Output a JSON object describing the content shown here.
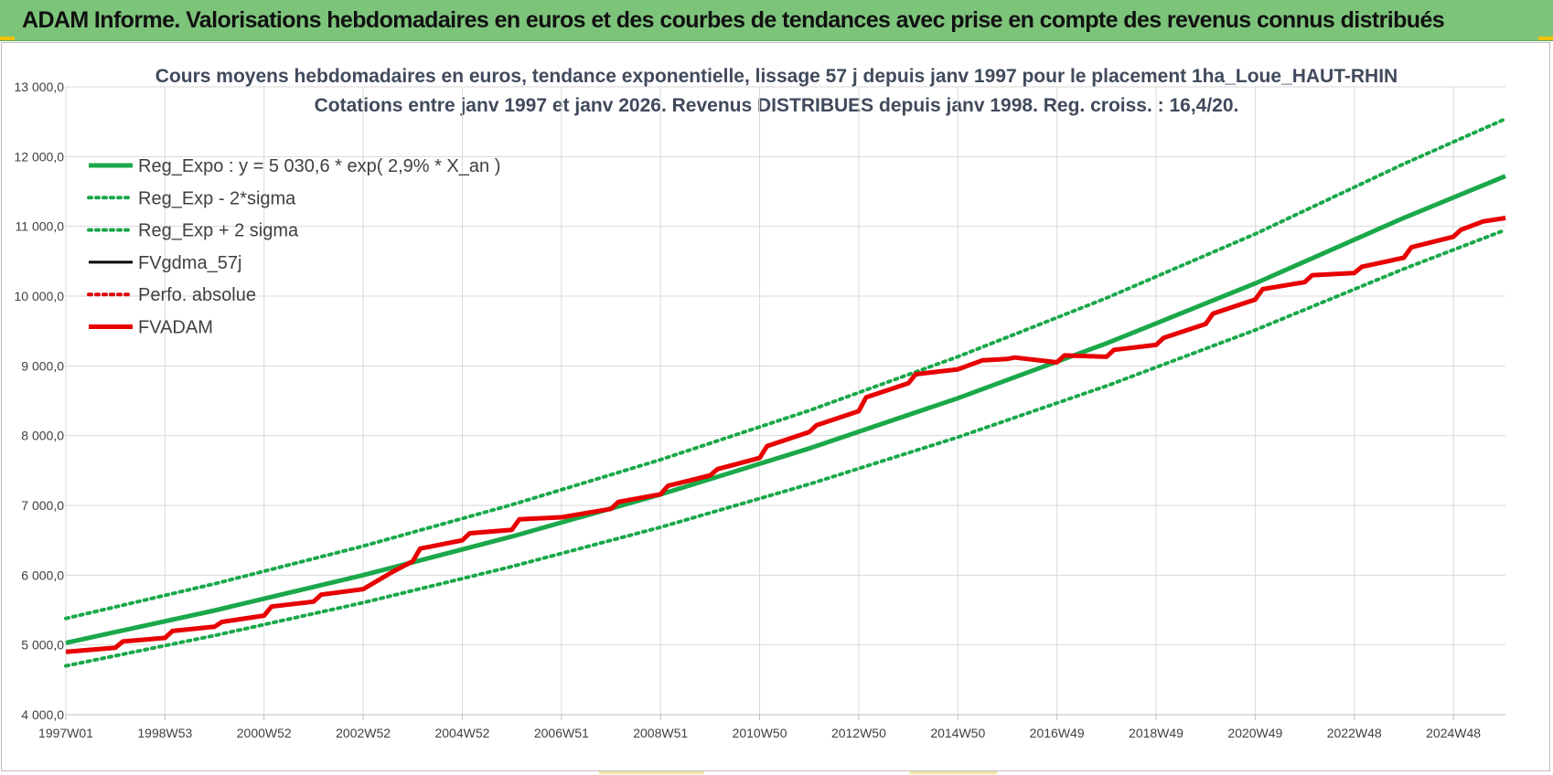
{
  "banner": {
    "title": "ADAM Informe. Valorisations hebdomadaires en euros et des courbes de tendances avec prise en compte des revenus connus distribués",
    "background": "#7dc47b"
  },
  "chart_data": {
    "type": "line",
    "title_line1": "Cours moyens hebdomadaires en euros, tendance exponentielle, lissage 57 j depuis janv 1997  pour le placement 1ha_Loue_HAUT-RHIN",
    "title_line2": "Cotations entre janv 1997 et janv 2026. Revenus DISTRIBUES depuis janv 1998.  Reg. croiss. : 16,4/20.",
    "ylim": [
      4000,
      13000
    ],
    "yticks": [
      4000,
      5000,
      6000,
      7000,
      8000,
      9000,
      10000,
      11000,
      12000,
      13000
    ],
    "ytick_labels": [
      "4 000,0",
      "5 000,0",
      "6 000,0",
      "7 000,0",
      "8 000,0",
      "9 000,0",
      "10 000,0",
      "11 000,0",
      "12 000,0",
      "13 000,0"
    ],
    "xlim": [
      1997.0,
      2026.05
    ],
    "xticks": [
      1997.0,
      1999.0,
      2001.0,
      2003.0,
      2005.0,
      2007.0,
      2009.0,
      2011.0,
      2013.0,
      2015.0,
      2017.0,
      2019.0,
      2021.0,
      2023.0,
      2025.0
    ],
    "xtick_labels": [
      "1997W01",
      "1998W53",
      "2000W52",
      "2002W52",
      "2004W52",
      "2006W51",
      "2008W51",
      "2010W50",
      "2012W50",
      "2014W50",
      "2016W49",
      "2018W49",
      "2020W49",
      "2022W48",
      "2024W48"
    ],
    "grid": true,
    "legend_position": "top-left",
    "series": [
      {
        "name": "Reg_Expo : y = 5 030,6 * exp( 2,9% *  X_an )",
        "style": "solid",
        "color": "#1aa84a",
        "width": 5,
        "x": [
          1997.0,
          2000.0,
          2003.0,
          2006.0,
          2009.0,
          2012.0,
          2015.0,
          2018.0,
          2021.0,
          2024.0,
          2026.05
        ],
        "values": [
          5030,
          5494,
          6000,
          6553,
          7157,
          7816,
          8537,
          9323,
          10182,
          11121,
          11720
        ]
      },
      {
        "name": "Reg_Exp - 2*sigma",
        "style": "dotted",
        "color": "#1aa84a",
        "width": 4,
        "x": [
          1997.0,
          2000.0,
          2003.0,
          2006.0,
          2009.0,
          2012.0,
          2015.0,
          2018.0,
          2021.0,
          2024.0,
          2026.05
        ],
        "values": [
          4700,
          5134,
          5606,
          6123,
          6687,
          7304,
          7977,
          8712,
          9514,
          10391,
          10950
        ]
      },
      {
        "name": "Reg_Exp + 2 sigma",
        "style": "dotted",
        "color": "#1aa84a",
        "width": 4,
        "x": [
          1997.0,
          2000.0,
          2003.0,
          2006.0,
          2009.0,
          2012.0,
          2015.0,
          2018.0,
          2021.0,
          2024.0,
          2026.05
        ],
        "values": [
          5380,
          5876,
          6417,
          7009,
          7655,
          8360,
          9131,
          9972,
          10891,
          11895,
          12540
        ]
      },
      {
        "name": "FVgdma_57j",
        "style": "solid",
        "color": "#000000",
        "width": 3,
        "x": [
          1997.0,
          1998.0,
          1998.15,
          1999.0,
          1999.15,
          2000.0,
          2000.15,
          2001.0,
          2001.15,
          2002.0,
          2002.15,
          2003.0,
          2003.6,
          2004.0,
          2004.15,
          2005.0,
          2005.15,
          2006.0,
          2006.15,
          2007.0,
          2008.0,
          2008.15,
          2009.0,
          2009.15,
          2010.0,
          2010.15,
          2011.0,
          2011.15,
          2012.0,
          2012.15,
          2013.0,
          2013.15,
          2014.0,
          2014.15,
          2015.0,
          2015.5,
          2016.0,
          2016.15,
          2017.0,
          2017.15,
          2018.0,
          2018.15,
          2019.0,
          2019.15,
          2020.0,
          2020.15,
          2021.0,
          2021.15,
          2022.0,
          2022.15,
          2023.0,
          2023.15,
          2024.0,
          2024.15,
          2025.0,
          2025.15,
          2025.6,
          2026.05
        ],
        "values": [
          4900,
          4960,
          5050,
          5100,
          5200,
          5260,
          5330,
          5420,
          5550,
          5620,
          5720,
          5800,
          6050,
          6200,
          6380,
          6500,
          6600,
          6650,
          6800,
          6830,
          6950,
          7050,
          7160,
          7280,
          7430,
          7520,
          7680,
          7850,
          8050,
          8150,
          8350,
          8550,
          8750,
          8880,
          8950,
          9080,
          9100,
          9120,
          9050,
          9150,
          9130,
          9230,
          9300,
          9400,
          9600,
          9750,
          9950,
          10100,
          10200,
          10300,
          10330,
          10420,
          10550,
          10700,
          10850,
          10950,
          11070,
          11120
        ]
      },
      {
        "name": "Perfo. absolue",
        "style": "dotted",
        "color": "#e00000",
        "width": 3,
        "x": [],
        "values": []
      },
      {
        "name": "FVADAM",
        "style": "solid",
        "color": "#e80000",
        "width": 5,
        "x": [
          1997.0,
          1998.0,
          1998.15,
          1999.0,
          1999.15,
          2000.0,
          2000.15,
          2001.0,
          2001.15,
          2002.0,
          2002.15,
          2003.0,
          2003.6,
          2004.0,
          2004.15,
          2005.0,
          2005.15,
          2006.0,
          2006.15,
          2007.0,
          2008.0,
          2008.15,
          2009.0,
          2009.15,
          2010.0,
          2010.15,
          2011.0,
          2011.15,
          2012.0,
          2012.15,
          2013.0,
          2013.15,
          2014.0,
          2014.15,
          2015.0,
          2015.5,
          2016.0,
          2016.15,
          2017.0,
          2017.15,
          2018.0,
          2018.15,
          2019.0,
          2019.15,
          2020.0,
          2020.15,
          2021.0,
          2021.15,
          2022.0,
          2022.15,
          2023.0,
          2023.15,
          2024.0,
          2024.15,
          2025.0,
          2025.15,
          2025.6,
          2026.05
        ],
        "values": [
          4900,
          4960,
          5050,
          5100,
          5200,
          5260,
          5330,
          5420,
          5550,
          5620,
          5720,
          5800,
          6050,
          6200,
          6380,
          6500,
          6600,
          6650,
          6800,
          6830,
          6950,
          7050,
          7160,
          7280,
          7430,
          7520,
          7680,
          7850,
          8050,
          8150,
          8350,
          8550,
          8750,
          8880,
          8950,
          9080,
          9100,
          9120,
          9050,
          9150,
          9130,
          9230,
          9300,
          9400,
          9600,
          9750,
          9950,
          10100,
          10200,
          10300,
          10330,
          10420,
          10550,
          10700,
          10850,
          10950,
          11070,
          11120
        ]
      }
    ]
  }
}
